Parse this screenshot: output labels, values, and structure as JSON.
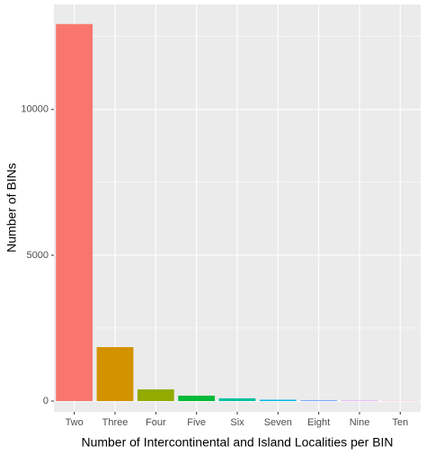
{
  "chart_data": {
    "type": "bar",
    "x_label": "Number of Intercontinental and Island Localities per BIN",
    "y_label": "Number of BINs",
    "categories": [
      "Two",
      "Three",
      "Four",
      "Five",
      "Six",
      "Seven",
      "Eight",
      "Nine",
      "Ten"
    ],
    "values": [
      12930,
      1850,
      400,
      185,
      93,
      46,
      25,
      12,
      5
    ],
    "colors": [
      "#F8766D",
      "#D39200",
      "#93AA00",
      "#00BA38",
      "#00C19F",
      "#00B9E3",
      "#619CFF",
      "#DB72FB",
      "#FF61C3"
    ],
    "ylim": [
      -370,
      13600
    ],
    "yticks": [
      0,
      5000,
      10000
    ],
    "y_minor_ticks": [
      2500,
      7500,
      12500
    ],
    "grid": true
  }
}
